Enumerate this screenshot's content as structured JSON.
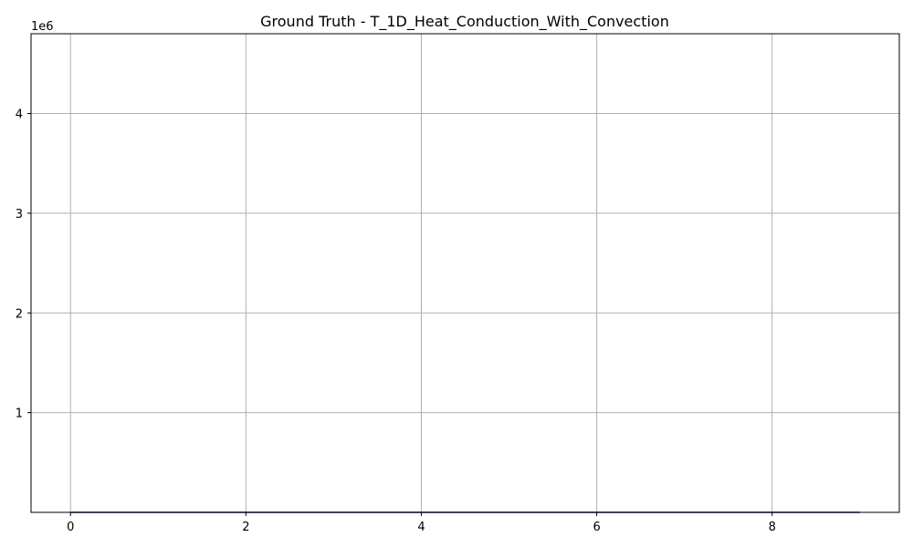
{
  "chart_data": {
    "type": "line",
    "title": "Ground Truth - T_1D_Heat_Conduction_With_Convection",
    "xlabel": "",
    "ylabel": "",
    "x_ticks": [
      0,
      2,
      4,
      6,
      8
    ],
    "x_tick_labels": [
      "0",
      "2",
      "4",
      "6",
      "8"
    ],
    "y_ticks": [
      1000000,
      2000000,
      3000000,
      4000000
    ],
    "y_tick_labels": [
      "1",
      "2",
      "3",
      "4"
    ],
    "y_offset_label": "1e6",
    "xlim": [
      -0.45,
      9.45
    ],
    "ylim": [
      0,
      4800000
    ],
    "grid": true,
    "series": [
      {
        "color": "#00008b",
        "x": [
          0,
          1,
          2,
          3,
          4,
          5,
          6,
          7,
          8,
          9
        ],
        "y": [
          0,
          0,
          0,
          0,
          0,
          0,
          0,
          0,
          0,
          0
        ]
      }
    ]
  }
}
